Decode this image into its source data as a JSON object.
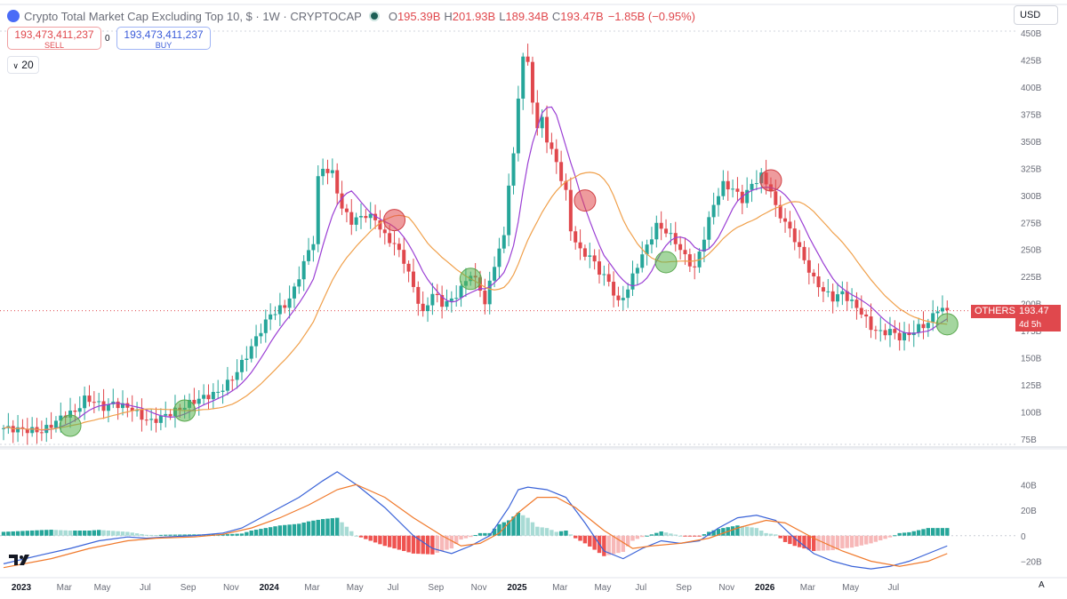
{
  "header": {
    "title": "Crypto Total Market Cap Excluding Top 10, $ · 1W · CRYPTOCAP",
    "ohlc": [
      {
        "label": "O",
        "value": "195.39B"
      },
      {
        "label": "H",
        "value": "201.93B"
      },
      {
        "label": "L",
        "value": "189.34B"
      },
      {
        "label": "C",
        "value": "193.47B"
      }
    ],
    "change": "−1.85B (−0.95%)"
  },
  "trade": {
    "sell_price": "193,473,411,237",
    "sell_label": "SELL",
    "spread": "0",
    "buy_price": "193,473,411,237",
    "buy_label": "BUY"
  },
  "interval_value": "20",
  "currency": "USD",
  "symbol_label": {
    "name": "OTHERS",
    "price": "193.47 B",
    "countdown": "4d 5h"
  },
  "auto_label": "A",
  "colors": {
    "up": "#26a69a",
    "down": "#e0484d",
    "fast_ma": "#9b3fd4",
    "slow_ma": "#f0a04b",
    "macd": "#3a63d8",
    "signal": "#f0792b",
    "hist_up": "#26a69a",
    "hist_down": "#ef5350"
  },
  "chart_data": [
    {
      "type": "candlestick",
      "title": "Crypto Total Market Cap Excluding Top 10, $",
      "interval": "1W",
      "y_unit": "B",
      "y_ticks": [
        "75B",
        "100B",
        "125B",
        "150B",
        "175B",
        "200B",
        "225B",
        "250B",
        "275B",
        "300B",
        "325B",
        "350B",
        "375B",
        "400B",
        "425B",
        "450B"
      ],
      "x_ticks": [
        "2023",
        "Mar",
        "May",
        "Jul",
        "Sep",
        "Nov",
        "2024",
        "Mar",
        "May",
        "Jul",
        "Sep",
        "Nov",
        "2025",
        "Mar",
        "May",
        "Jul",
        "Sep",
        "Nov",
        "2026",
        "Mar",
        "May",
        "Jul"
      ],
      "ylim": [
        75,
        450
      ],
      "last_price": 193.47,
      "close_path": [
        [
          0,
          85
        ],
        [
          6,
          83
        ],
        [
          8,
          82
        ],
        [
          10,
          88
        ],
        [
          13,
          98
        ],
        [
          15,
          100
        ],
        [
          17,
          112
        ],
        [
          19,
          110
        ],
        [
          21,
          104
        ],
        [
          23,
          108
        ],
        [
          27,
          103
        ],
        [
          29,
          95
        ],
        [
          31,
          91
        ],
        [
          33,
          95
        ],
        [
          35,
          99
        ],
        [
          37,
          103
        ],
        [
          39,
          108
        ],
        [
          41,
          112
        ],
        [
          45,
          118
        ],
        [
          48,
          131
        ],
        [
          51,
          152
        ],
        [
          54,
          176
        ],
        [
          56,
          190
        ],
        [
          59,
          198
        ],
        [
          61,
          213
        ],
        [
          63,
          238
        ],
        [
          65,
          258
        ],
        [
          66,
          315
        ],
        [
          67,
          325
        ],
        [
          69,
          320
        ],
        [
          71,
          288
        ],
        [
          73,
          276
        ],
        [
          76,
          282
        ],
        [
          78,
          278
        ],
        [
          80,
          262
        ],
        [
          82,
          255
        ],
        [
          84,
          240
        ],
        [
          86,
          215
        ],
        [
          88,
          190
        ],
        [
          90,
          210
        ],
        [
          92,
          200
        ],
        [
          94,
          203
        ],
        [
          96,
          214
        ],
        [
          98,
          228
        ],
        [
          100,
          214
        ],
        [
          101,
          200
        ],
        [
          103,
          237
        ],
        [
          105,
          262
        ],
        [
          106,
          312
        ],
        [
          107,
          336
        ],
        [
          108,
          390
        ],
        [
          109,
          430
        ],
        [
          110,
          420
        ],
        [
          111,
          388
        ],
        [
          112,
          362
        ],
        [
          113,
          370
        ],
        [
          114,
          352
        ],
        [
          116,
          330
        ],
        [
          118,
          302
        ],
        [
          119,
          268
        ],
        [
          121,
          248
        ],
        [
          123,
          244
        ],
        [
          125,
          230
        ],
        [
          127,
          220
        ],
        [
          129,
          200
        ],
        [
          131,
          214
        ],
        [
          133,
          236
        ],
        [
          135,
          253
        ],
        [
          137,
          272
        ],
        [
          139,
          267
        ],
        [
          141,
          257
        ],
        [
          143,
          243
        ],
        [
          145,
          232
        ],
        [
          147,
          262
        ],
        [
          149,
          292
        ],
        [
          151,
          310
        ],
        [
          153,
          306
        ],
        [
          155,
          296
        ],
        [
          157,
          310
        ],
        [
          159,
          318
        ],
        [
          161,
          305
        ],
        [
          162,
          288
        ],
        [
          164,
          275
        ],
        [
          166,
          260
        ],
        [
          168,
          240
        ],
        [
          170,
          222
        ],
        [
          172,
          212
        ],
        [
          174,
          205
        ],
        [
          176,
          210
        ],
        [
          178,
          201
        ],
        [
          180,
          192
        ],
        [
          182,
          178
        ],
        [
          184,
          173
        ],
        [
          186,
          175
        ],
        [
          188,
          169
        ],
        [
          190,
          172
        ],
        [
          192,
          178
        ],
        [
          194,
          182
        ],
        [
          196,
          196
        ],
        [
          197,
          194
        ],
        [
          198,
          193.47
        ]
      ],
      "indicators": [
        {
          "name": "fast moving average"
        },
        {
          "name": "slow moving average"
        }
      ],
      "markers": {
        "buy_weeks": [
          14,
          38,
          98,
          139,
          198
        ],
        "sell_weeks": [
          82,
          122,
          161
        ]
      }
    },
    {
      "type": "macd",
      "y_ticks": [
        "40B",
        "20B",
        "0",
        "−20B"
      ],
      "ylim": [
        -28,
        52
      ],
      "macd_path": [
        [
          0,
          -22
        ],
        [
          8,
          -15
        ],
        [
          14,
          -10
        ],
        [
          20,
          -4
        ],
        [
          26,
          -1
        ],
        [
          30,
          -2
        ],
        [
          34,
          -1
        ],
        [
          40,
          0
        ],
        [
          46,
          2
        ],
        [
          50,
          6
        ],
        [
          56,
          18
        ],
        [
          62,
          30
        ],
        [
          67,
          43
        ],
        [
          70,
          50
        ],
        [
          74,
          40
        ],
        [
          80,
          22
        ],
        [
          86,
          0
        ],
        [
          90,
          -10
        ],
        [
          94,
          -14
        ],
        [
          98,
          -8
        ],
        [
          102,
          0
        ],
        [
          106,
          22
        ],
        [
          108,
          36
        ],
        [
          110,
          38
        ],
        [
          114,
          36
        ],
        [
          118,
          30
        ],
        [
          122,
          10
        ],
        [
          126,
          -12
        ],
        [
          130,
          -18
        ],
        [
          134,
          -10
        ],
        [
          138,
          -4
        ],
        [
          142,
          -6
        ],
        [
          146,
          -4
        ],
        [
          150,
          6
        ],
        [
          154,
          14
        ],
        [
          158,
          16
        ],
        [
          162,
          12
        ],
        [
          166,
          -2
        ],
        [
          170,
          -14
        ],
        [
          174,
          -20
        ],
        [
          178,
          -24
        ],
        [
          182,
          -26
        ],
        [
          186,
          -24
        ],
        [
          190,
          -20
        ],
        [
          194,
          -14
        ],
        [
          198,
          -8
        ]
      ],
      "signal_path": [
        [
          0,
          -25
        ],
        [
          10,
          -18
        ],
        [
          18,
          -10
        ],
        [
          26,
          -4
        ],
        [
          32,
          -2
        ],
        [
          40,
          -1
        ],
        [
          46,
          1
        ],
        [
          52,
          6
        ],
        [
          58,
          14
        ],
        [
          64,
          24
        ],
        [
          70,
          36
        ],
        [
          74,
          40
        ],
        [
          80,
          30
        ],
        [
          86,
          14
        ],
        [
          92,
          0
        ],
        [
          96,
          -8
        ],
        [
          100,
          -6
        ],
        [
          104,
          2
        ],
        [
          108,
          18
        ],
        [
          112,
          30
        ],
        [
          116,
          30
        ],
        [
          120,
          22
        ],
        [
          126,
          4
        ],
        [
          132,
          -10
        ],
        [
          136,
          -8
        ],
        [
          142,
          -6
        ],
        [
          148,
          -2
        ],
        [
          154,
          6
        ],
        [
          160,
          12
        ],
        [
          164,
          10
        ],
        [
          170,
          -2
        ],
        [
          176,
          -12
        ],
        [
          182,
          -20
        ],
        [
          188,
          -24
        ],
        [
          194,
          -20
        ],
        [
          198,
          -14
        ]
      ]
    }
  ]
}
